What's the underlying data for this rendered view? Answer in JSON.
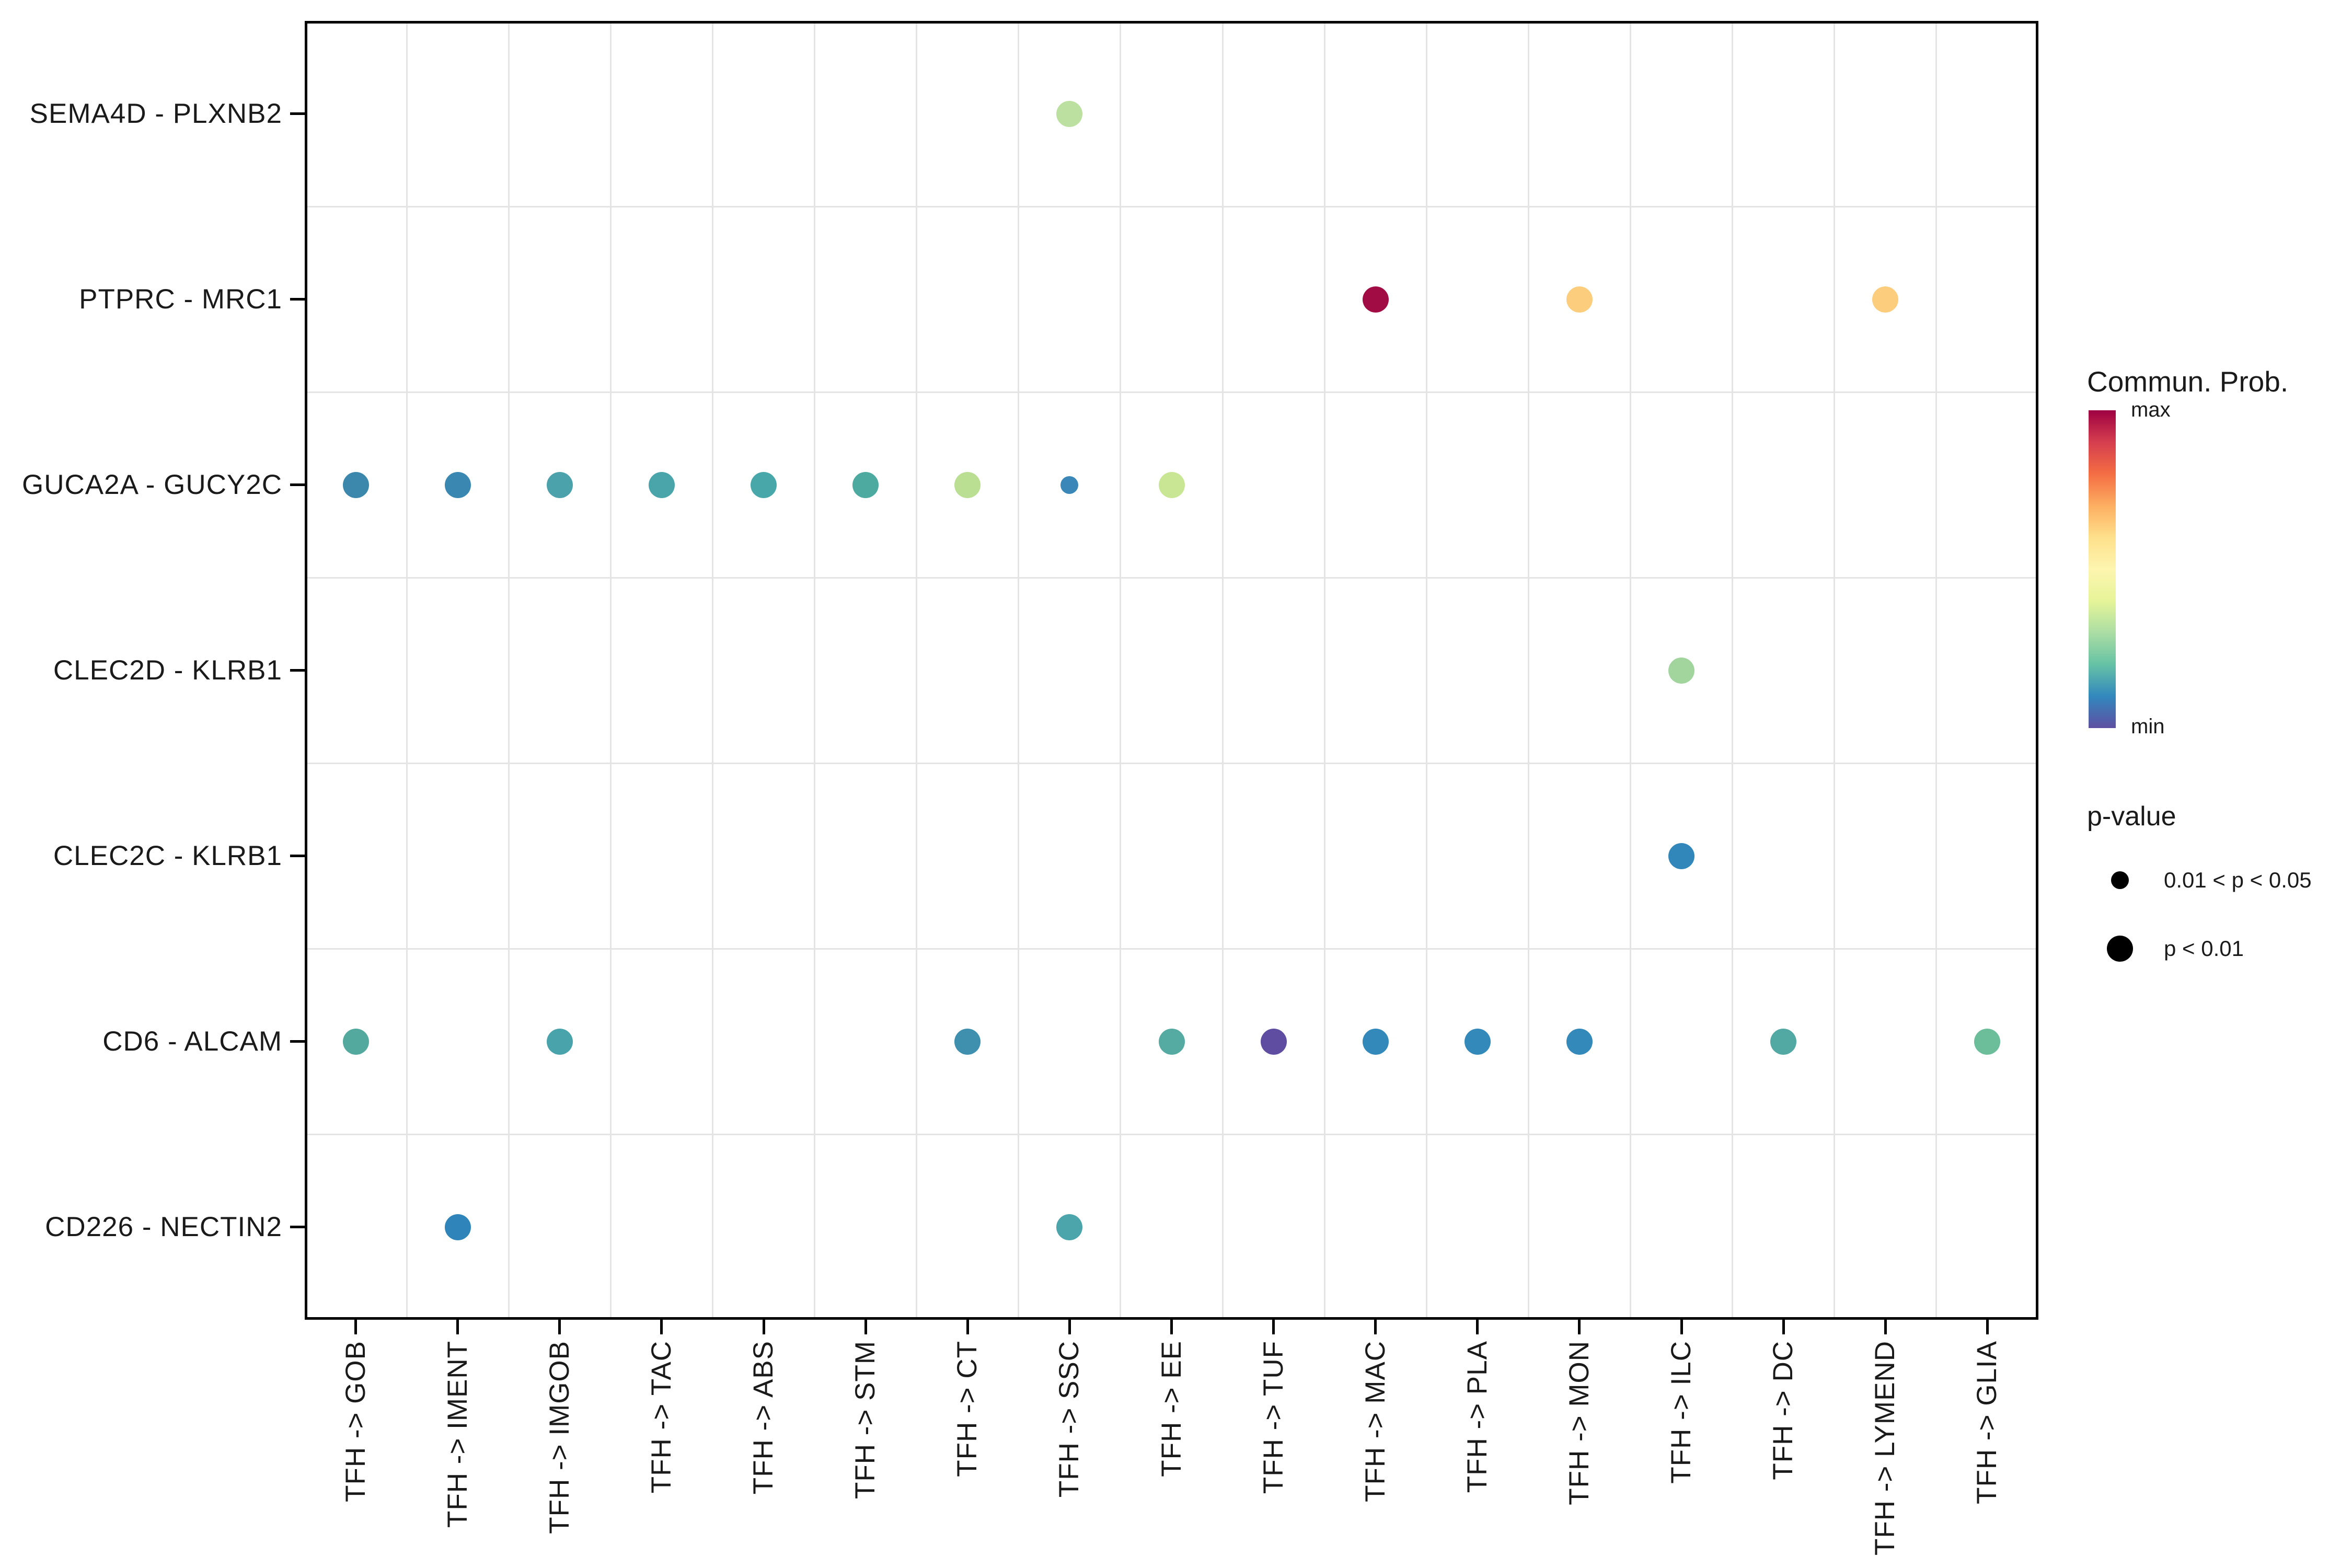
{
  "figure": {
    "background": "#ffffff",
    "panel_border_color": "#000000",
    "gridline_color": "#e4e4e4",
    "text_color": "#1a1a1a"
  },
  "legend": {
    "commun_prob": {
      "title": "Commun. Prob.",
      "max_label": "max",
      "min_label": "min",
      "colormap": "Spectral reversed",
      "gradient": [
        "#9e0142",
        "#d53e4f",
        "#f46d43",
        "#fdae61",
        "#fee08b",
        "#fdf5b0",
        "#e6f598",
        "#abdda4",
        "#66c2a5",
        "#3288bd",
        "#5e4fa2"
      ]
    },
    "p_value": {
      "title": "p-value",
      "items": [
        {
          "label": "0.01 < p < 0.05",
          "size": "small"
        },
        {
          "label": "p < 0.01",
          "size": "large"
        }
      ]
    }
  },
  "chart_data": {
    "type": "scatter",
    "subtype": "bubble-dotplot",
    "title": "",
    "xlabel": "",
    "ylabel": "",
    "grid": "boundaries-only",
    "legend_position": "right",
    "x_categories": [
      "TFH -> GOB",
      "TFH -> IMENT",
      "TFH -> IMGOB",
      "TFH -> TAC",
      "TFH -> ABS",
      "TFH -> STM",
      "TFH -> CT",
      "TFH -> SSC",
      "TFH -> EE",
      "TFH -> TUF",
      "TFH -> MAC",
      "TFH -> PLA",
      "TFH -> MON",
      "TFH -> ILC",
      "TFH -> DC",
      "TFH -> LYMEND",
      "TFH -> GLIA"
    ],
    "y_categories": [
      "SEMA4D - PLXNB2",
      "PTPRC - MRC1",
      "GUCA2A - GUCY2C",
      "CLEC2D - KLRB1",
      "CLEC2C - KLRB1",
      "CD6 - ALCAM",
      "CD226 - NECTIN2"
    ],
    "color_encodes": "Commun. Prob. (min to max, Spectral reversed)",
    "size_encodes": "p-value (small: 0.01<p<0.05, large: p<0.01)",
    "points": [
      {
        "y": "SEMA4D - PLXNB2",
        "x": "TFH -> SSC",
        "color": "#bce0a0",
        "p": "p < 0.01",
        "size": "large"
      },
      {
        "y": "PTPRC - MRC1",
        "x": "TFH -> MAC",
        "color": "#a10c45",
        "p": "p < 0.01",
        "size": "large"
      },
      {
        "y": "PTPRC - MRC1",
        "x": "TFH -> MON",
        "color": "#fbcd7d",
        "p": "p < 0.01",
        "size": "large"
      },
      {
        "y": "PTPRC - MRC1",
        "x": "TFH -> LYMEND",
        "color": "#fbcd7d",
        "p": "p < 0.01",
        "size": "large"
      },
      {
        "y": "GUCA2A - GUCY2C",
        "x": "TFH -> GOB",
        "color": "#3c88ac",
        "p": "p < 0.01",
        "size": "large"
      },
      {
        "y": "GUCA2A - GUCY2C",
        "x": "TFH -> IMENT",
        "color": "#3a87b2",
        "p": "p < 0.01",
        "size": "large"
      },
      {
        "y": "GUCA2A - GUCY2C",
        "x": "TFH -> IMGOB",
        "color": "#4ba2ab",
        "p": "p < 0.01",
        "size": "large"
      },
      {
        "y": "GUCA2A - GUCY2C",
        "x": "TFH -> TAC",
        "color": "#4aa5ab",
        "p": "p < 0.01",
        "size": "large"
      },
      {
        "y": "GUCA2A - GUCY2C",
        "x": "TFH -> ABS",
        "color": "#48a7a9",
        "p": "p < 0.01",
        "size": "large"
      },
      {
        "y": "GUCA2A - GUCY2C",
        "x": "TFH -> STM",
        "color": "#4caaa0",
        "p": "p < 0.01",
        "size": "large"
      },
      {
        "y": "GUCA2A - GUCY2C",
        "x": "TFH -> CT",
        "color": "#bade92",
        "p": "p < 0.01",
        "size": "large"
      },
      {
        "y": "GUCA2A - GUCY2C",
        "x": "TFH -> SSC",
        "color": "#3a87b8",
        "p": "0.01 < p < 0.05",
        "size": "small"
      },
      {
        "y": "GUCA2A - GUCY2C",
        "x": "TFH -> EE",
        "color": "#c9e694",
        "p": "p < 0.01",
        "size": "large"
      },
      {
        "y": "CLEC2D - KLRB1",
        "x": "TFH -> ILC",
        "color": "#a2d59e",
        "p": "p < 0.01",
        "size": "large"
      },
      {
        "y": "CLEC2C - KLRB1",
        "x": "TFH -> ILC",
        "color": "#3187b9",
        "p": "p < 0.01",
        "size": "large"
      },
      {
        "y": "CD6 - ALCAM",
        "x": "TFH -> GOB",
        "color": "#53a99e",
        "p": "p < 0.01",
        "size": "large"
      },
      {
        "y": "CD6 - ALCAM",
        "x": "TFH -> IMGOB",
        "color": "#48a3aa",
        "p": "p < 0.01",
        "size": "large"
      },
      {
        "y": "CD6 - ALCAM",
        "x": "TFH -> CT",
        "color": "#3f8fae",
        "p": "p < 0.01",
        "size": "large"
      },
      {
        "y": "CD6 - ALCAM",
        "x": "TFH -> EE",
        "color": "#55aba1",
        "p": "p < 0.01",
        "size": "large"
      },
      {
        "y": "CD6 - ALCAM",
        "x": "TFH -> TUF",
        "color": "#5f4da1",
        "p": "p < 0.01",
        "size": "large"
      },
      {
        "y": "CD6 - ALCAM",
        "x": "TFH -> MAC",
        "color": "#3389b9",
        "p": "p < 0.01",
        "size": "large"
      },
      {
        "y": "CD6 - ALCAM",
        "x": "TFH -> PLA",
        "color": "#3389b9",
        "p": "p < 0.01",
        "size": "large"
      },
      {
        "y": "CD6 - ALCAM",
        "x": "TFH -> MON",
        "color": "#3389b9",
        "p": "p < 0.01",
        "size": "large"
      },
      {
        "y": "CD6 - ALCAM",
        "x": "TFH -> DC",
        "color": "#52a8a2",
        "p": "p < 0.01",
        "size": "large"
      },
      {
        "y": "CD6 - ALCAM",
        "x": "TFH -> GLIA",
        "color": "#6cbd99",
        "p": "p < 0.01",
        "size": "large"
      },
      {
        "y": "CD226 - NECTIN2",
        "x": "TFH -> IMENT",
        "color": "#2f85b9",
        "p": "p < 0.01",
        "size": "large"
      },
      {
        "y": "CD226 - NECTIN2",
        "x": "TFH -> SSC",
        "color": "#4ba5ab",
        "p": "p < 0.01",
        "size": "large"
      }
    ]
  }
}
